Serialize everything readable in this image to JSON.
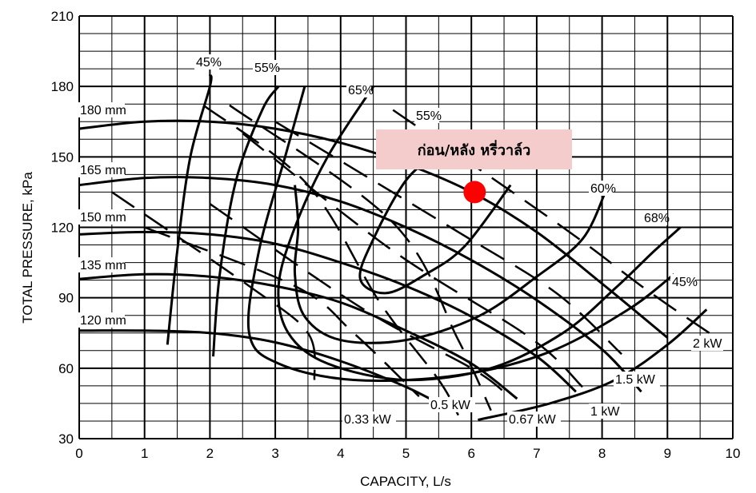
{
  "chart_data": {
    "type": "line",
    "title": "",
    "xlabel": "CAPACITY, L/s",
    "ylabel": "TOTAL PRESSURE, kPa",
    "xlim": [
      0,
      10
    ],
    "ylim": [
      30,
      210
    ],
    "x_ticks": [
      "0",
      "1",
      "2",
      "3",
      "4",
      "5",
      "6",
      "7",
      "8",
      "9",
      "10"
    ],
    "y_ticks": [
      "30",
      "60",
      "90",
      "120",
      "150",
      "180",
      "210"
    ],
    "grid": true,
    "impeller_curves": [
      {
        "name": "180 mm",
        "points": [
          [
            0,
            162
          ],
          [
            1,
            165
          ],
          [
            2,
            165
          ],
          [
            3,
            162
          ],
          [
            4,
            156
          ],
          [
            5,
            147
          ],
          [
            6,
            135
          ],
          [
            7,
            118
          ],
          [
            8,
            96
          ],
          [
            9,
            73
          ]
        ]
      },
      {
        "name": "165 mm",
        "points": [
          [
            0,
            138
          ],
          [
            1,
            141
          ],
          [
            2,
            141
          ],
          [
            3,
            138
          ],
          [
            4,
            131
          ],
          [
            5,
            120
          ],
          [
            6,
            106
          ],
          [
            7,
            89
          ],
          [
            8,
            68
          ],
          [
            8.6,
            50
          ]
        ]
      },
      {
        "name": "150 mm",
        "points": [
          [
            0,
            117
          ],
          [
            1,
            118
          ],
          [
            2,
            117
          ],
          [
            3,
            113
          ],
          [
            4,
            105
          ],
          [
            5,
            95
          ],
          [
            6,
            82
          ],
          [
            7,
            65
          ],
          [
            7.6,
            50
          ]
        ]
      },
      {
        "name": "135 mm",
        "points": [
          [
            0,
            98
          ],
          [
            1,
            100
          ],
          [
            2,
            99
          ],
          [
            3,
            95
          ],
          [
            4,
            88
          ],
          [
            5,
            76
          ],
          [
            6,
            62
          ],
          [
            6.7,
            47
          ]
        ]
      },
      {
        "name": "120 mm",
        "points": [
          [
            0,
            76
          ],
          [
            1,
            76
          ],
          [
            2,
            75
          ],
          [
            3,
            71
          ],
          [
            4,
            63
          ],
          [
            5,
            52
          ],
          [
            5.7,
            42
          ]
        ]
      }
    ],
    "efficiency_curves": [
      {
        "name": "45%",
        "points": [
          [
            1.35,
            70
          ],
          [
            1.5,
            110
          ],
          [
            1.7,
            150
          ],
          [
            2.0,
            180
          ],
          [
            2.0,
            185
          ]
        ]
      },
      {
        "name": "55%",
        "points": [
          [
            2.05,
            65
          ],
          [
            2.15,
            100
          ],
          [
            2.4,
            140
          ],
          [
            2.8,
            170
          ],
          [
            3.05,
            180
          ]
        ]
      },
      {
        "name": "65%",
        "points": [
          [
            4.5,
            180
          ],
          [
            3.8,
            150
          ],
          [
            3.3,
            120
          ],
          [
            3.05,
            95
          ],
          [
            3.2,
            75
          ],
          [
            3.8,
            62
          ],
          [
            5.0,
            55
          ],
          [
            6.3,
            60
          ],
          [
            7.4,
            75
          ],
          [
            8.2,
            94
          ],
          [
            8.8,
            110
          ],
          [
            9.2,
            120
          ]
        ]
      },
      {
        "name": "55%",
        "points": [
          [
            3.45,
            180
          ],
          [
            3.15,
            150
          ],
          [
            2.75,
            110
          ],
          [
            2.6,
            75
          ],
          [
            3.05,
            62
          ],
          [
            4.2,
            55
          ],
          [
            5.8,
            57
          ],
          [
            7.2,
            67
          ],
          [
            8.4,
            85
          ],
          [
            9.1,
            100
          ]
        ]
      },
      {
        "name": "45%",
        "points": [
          [
            6.1,
            38
          ],
          [
            7.2,
            45
          ],
          [
            8.2,
            55
          ],
          [
            9.0,
            70
          ],
          [
            9.6,
            85
          ]
        ]
      },
      {
        "name": "68%",
        "points": [
          [
            5.5,
            152
          ],
          [
            5.0,
            140
          ],
          [
            4.5,
            115
          ],
          [
            4.3,
            98
          ],
          [
            4.7,
            92
          ],
          [
            5.3,
            100
          ],
          [
            5.9,
            112
          ],
          [
            6.6,
            138
          ]
        ]
      },
      {
        "name": "60%",
        "points": [
          [
            3.3,
            138
          ],
          [
            3.35,
            120
          ],
          [
            3.3,
            100
          ],
          [
            3.45,
            82
          ],
          [
            4.0,
            72
          ],
          [
            5.0,
            72
          ],
          [
            6.1,
            82
          ],
          [
            7.0,
            99
          ],
          [
            7.7,
            115
          ],
          [
            8.05,
            135
          ]
        ]
      }
    ],
    "power_curves": [
      {
        "name": "0.33 kW",
        "points": [
          [
            1.9,
            172
          ],
          [
            3.5,
            138
          ],
          [
            4.6,
            88
          ],
          [
            5.5,
            55
          ],
          [
            5.8,
            40
          ]
        ]
      },
      {
        "name": "0.5 kW",
        "points": [
          [
            2.3,
            172
          ],
          [
            4.8,
            122
          ],
          [
            5.8,
            72
          ],
          [
            6.3,
            42
          ]
        ]
      },
      {
        "name": "0.67 kW",
        "points": [
          [
            2.0,
            130
          ],
          [
            4.3,
            86
          ],
          [
            6.0,
            60
          ],
          [
            6.5,
            50
          ]
        ]
      },
      {
        "name": "1 kW",
        "points": [
          [
            2.5,
            160
          ],
          [
            4.8,
            110
          ],
          [
            6.9,
            73
          ],
          [
            7.7,
            52
          ]
        ]
      },
      {
        "name": "1.5 kW",
        "points": [
          [
            3.0,
            165
          ],
          [
            5.8,
            118
          ],
          [
            7.3,
            92
          ],
          [
            8.3,
            66
          ]
        ]
      },
      {
        "name": "2 kW",
        "points": [
          [
            4.8,
            170
          ],
          [
            7.4,
            120
          ],
          [
            8.7,
            93
          ],
          [
            9.8,
            72
          ]
        ]
      },
      {
        "name": "0.5 kW",
        "points": [
          [
            1.0,
            120
          ],
          [
            3.3,
            95
          ],
          [
            4.2,
            75
          ],
          [
            5.2,
            48
          ]
        ]
      },
      {
        "name": "0.33 kW",
        "points": [
          [
            0.5,
            135
          ],
          [
            2.6,
            95
          ],
          [
            3.5,
            75
          ],
          [
            3.6,
            55
          ]
        ]
      }
    ],
    "power_labels": [
      "0.33 kW",
      "0.5 kW",
      "0.67 kW",
      "1 kW",
      "1.5 kW",
      "2 kW"
    ],
    "operating_point": {
      "x": 6.05,
      "y": 135,
      "color": "#ff0000"
    },
    "annotation": {
      "text": "ก่อน/หลัง หรี่วาล์ว",
      "background": "#f4cccc"
    }
  }
}
